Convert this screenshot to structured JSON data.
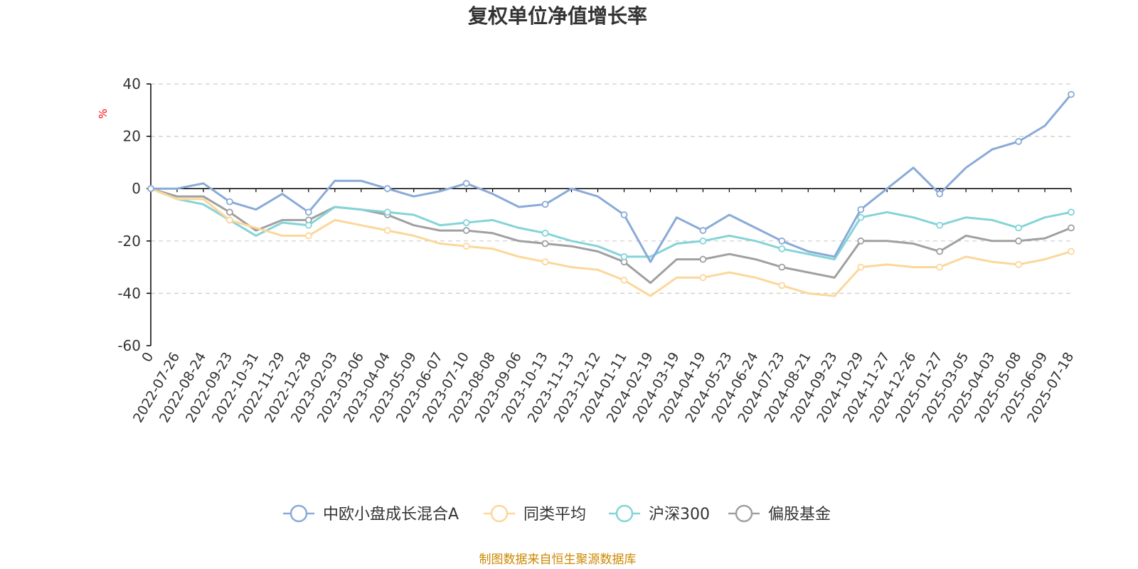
{
  "chart_data": {
    "type": "line",
    "title": "复权单位净值增长率",
    "ylabel": "%",
    "ylim": [
      -60,
      40
    ],
    "yticks": [
      40,
      20,
      0,
      -20,
      -40,
      -60
    ],
    "grid": true,
    "legend_position": "bottom",
    "x": [
      "0",
      "2022-07-26",
      "2022-08-24",
      "2022-09-23",
      "2022-10-31",
      "2022-11-29",
      "2022-12-28",
      "2023-02-03",
      "2023-03-06",
      "2023-04-04",
      "2023-05-09",
      "2023-06-07",
      "2023-07-10",
      "2023-08-08",
      "2023-09-06",
      "2023-10-13",
      "2023-11-13",
      "2023-12-12",
      "2024-01-11",
      "2024-02-19",
      "2024-03-19",
      "2024-04-19",
      "2024-05-23",
      "2024-06-24",
      "2024-07-23",
      "2024-08-21",
      "2024-09-23",
      "2024-10-29",
      "2024-11-27",
      "2024-12-26",
      "2025-01-27",
      "2025-03-05",
      "2025-04-03",
      "2025-05-08",
      "2025-06-09",
      "2025-07-18"
    ],
    "series": [
      {
        "name": "中欧小盘成长混合A",
        "color": "#8aaad8",
        "values": [
          0,
          0,
          2,
          -5,
          -8,
          -2,
          -9,
          3,
          3,
          0,
          -3,
          -1,
          2,
          -2,
          -7,
          -6,
          0,
          -3,
          -10,
          -28,
          -11,
          -16,
          -10,
          -15,
          -20,
          -24,
          -26,
          -8,
          0,
          8,
          -2,
          8,
          15,
          18,
          24,
          36
        ]
      },
      {
        "name": "同类平均",
        "color": "#fcd79a",
        "values": [
          0,
          -4,
          -4,
          -12,
          -15,
          -18,
          -18,
          -12,
          -14,
          -16,
          -18,
          -21,
          -22,
          -23,
          -26,
          -28,
          -30,
          -31,
          -35,
          -41,
          -34,
          -34,
          -32,
          -34,
          -37,
          -40,
          -41,
          -30,
          -29,
          -30,
          -30,
          -26,
          -28,
          -29,
          -27,
          -24
        ]
      },
      {
        "name": "沪深300",
        "color": "#84d4d7",
        "values": [
          0,
          -4,
          -6,
          -12,
          -18,
          -13,
          -14,
          -7,
          -8,
          -9,
          -10,
          -14,
          -13,
          -12,
          -15,
          -17,
          -20,
          -22,
          -26,
          -26,
          -21,
          -20,
          -18,
          -20,
          -23,
          -25,
          -27,
          -11,
          -9,
          -11,
          -14,
          -11,
          -12,
          -15,
          -11,
          -9
        ]
      },
      {
        "name": "偏股基金",
        "color": "#a0a0a0",
        "values": [
          0,
          -3,
          -3,
          -9,
          -16,
          -12,
          -12,
          -7,
          -8,
          -10,
          -14,
          -16,
          -16,
          -17,
          -20,
          -21,
          -22,
          -24,
          -28,
          -36,
          -27,
          -27,
          -25,
          -27,
          -30,
          -32,
          -34,
          -20,
          -20,
          -21,
          -24,
          -18,
          -20,
          -20,
          -19,
          -15
        ]
      }
    ]
  },
  "source_note": "制图数据来自恒生聚源数据库",
  "colors": {
    "axis": "#000000",
    "grid": "#cccccc",
    "unit": "#ff0000",
    "source": "#cc8800"
  }
}
